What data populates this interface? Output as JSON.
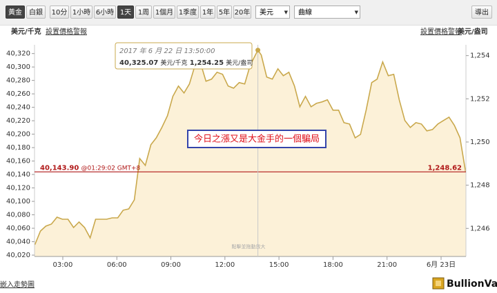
{
  "toolbar": {
    "metals": [
      "黃金",
      "白銀"
    ],
    "active_metal": 0,
    "ranges": [
      "10分",
      "1小時",
      "6小時",
      "1天",
      "1周",
      "1個月",
      "1季度",
      "1年",
      "5年",
      "20年"
    ],
    "active_range": 3,
    "currency": "美元",
    "chart_style": "曲線",
    "export": "導出"
  },
  "header": {
    "left_unit": "美元/千克",
    "left_link": "設置價格警報",
    "right_link": "設置價格警報",
    "right_unit": "美元/盎司"
  },
  "footer": {
    "embed_link": "嵌入走勢圖",
    "logo": "BullionVault"
  },
  "chart_data": {
    "type": "area",
    "color": "#c9a84c",
    "fill": "#fcf1d8",
    "watermark": "BullionVault",
    "hint": "點擊並拖動放大",
    "x": [
      1.45,
      1.76,
      2.06,
      2.37,
      2.68,
      2.98,
      3.29,
      3.6,
      3.9,
      4.21,
      4.52,
      4.82,
      5.13,
      5.43,
      5.74,
      6.05,
      6.35,
      6.66,
      6.97,
      7.27,
      7.58,
      7.89,
      8.19,
      8.5,
      8.81,
      9.11,
      9.42,
      9.73,
      10.03,
      10.34,
      10.65,
      10.95,
      11.26,
      11.56,
      11.87,
      12.18,
      12.48,
      12.79,
      13.1,
      13.4,
      13.83,
      14.02,
      14.32,
      14.63,
      14.94,
      15.24,
      15.55,
      15.86,
      16.16,
      16.47,
      16.78,
      17.08,
      17.39,
      17.69,
      18.0,
      18.31,
      18.61,
      18.92,
      19.23,
      19.53,
      19.84,
      20.15,
      20.45,
      20.76,
      21.07,
      21.37,
      21.68,
      21.99,
      22.29,
      22.6,
      22.91,
      23.21,
      23.52,
      23.82,
      24.13,
      24.44,
      24.74,
      25.05,
      25.36
    ],
    "values": [
      40035.4,
      40055.9,
      40063.1,
      40066.2,
      40076.5,
      40073.4,
      40073.4,
      40061.1,
      40069.3,
      40061.1,
      40045.7,
      40073.4,
      40073.4,
      40073.4,
      40075.5,
      40075.5,
      40086.8,
      40088.8,
      40102.2,
      40163.8,
      40153.5,
      40184.3,
      40194.6,
      40210.0,
      40227.5,
      40256.2,
      40271.6,
      40261.3,
      40274.7,
      40302.4,
      40305.5,
      40278.8,
      40281.9,
      40292.2,
      40289.1,
      40271.6,
      40268.5,
      40276.8,
      40274.7,
      40302.4,
      40325.07,
      40317.8,
      40285.0,
      40281.9,
      40297.3,
      40287.0,
      40292.2,
      40271.6,
      40240.8,
      40256.2,
      40240.8,
      40245.9,
      40248.0,
      40251.1,
      40235.7,
      40235.7,
      40217.2,
      40215.1,
      40194.6,
      40199.7,
      40235.7,
      40276.8,
      40281.9,
      40307.6,
      40287.0,
      40289.1,
      40251.1,
      40220.3,
      40210.0,
      40217.2,
      40215.1,
      40204.9,
      40206.9,
      40215.1,
      40220.3,
      40225.4,
      40213.1,
      40194.6,
      40143.9
    ],
    "xlim": [
      1.43,
      25.38
    ],
    "xticks": [
      {
        "value": 3,
        "label": "03:00"
      },
      {
        "value": 6,
        "label": "06:00"
      },
      {
        "value": 9,
        "label": "09:00"
      },
      {
        "value": 12,
        "label": "12:00"
      },
      {
        "value": 15,
        "label": "15:00"
      },
      {
        "value": 18,
        "label": "18:00"
      },
      {
        "value": 21,
        "label": "21:00"
      },
      {
        "value": 24,
        "label": "6月 23日"
      }
    ],
    "ylim": [
      40018,
      40333
    ],
    "yticks": [
      {
        "value": 40020,
        "label": "40,020"
      },
      {
        "value": 40040,
        "label": "40,040"
      },
      {
        "value": 40060,
        "label": "40,060"
      },
      {
        "value": 40080,
        "label": "40,080"
      },
      {
        "value": 40100,
        "label": "40,100"
      },
      {
        "value": 40120,
        "label": "40,120"
      },
      {
        "value": 40140,
        "label": "40,140"
      },
      {
        "value": 40160,
        "label": "40,160"
      },
      {
        "value": 40180,
        "label": "40,180"
      },
      {
        "value": 40200,
        "label": "40,200"
      },
      {
        "value": 40220,
        "label": "40,220"
      },
      {
        "value": 40240,
        "label": "40,240"
      },
      {
        "value": 40260,
        "label": "40,260"
      },
      {
        "value": 40280,
        "label": "40,280"
      },
      {
        "value": 40300,
        "label": "40,300"
      },
      {
        "value": 40320,
        "label": "40,320"
      }
    ],
    "y2lim": [
      1244.7,
      1254.5
    ],
    "y2ticks": [
      {
        "value": 1246,
        "label": "1,246"
      },
      {
        "value": 1248,
        "label": "1,248"
      },
      {
        "value": 1250,
        "label": "1,250"
      },
      {
        "value": 1252,
        "label": "1,252"
      },
      {
        "value": 1254,
        "label": "1,254"
      }
    ],
    "current": {
      "value": 40143.9,
      "label": "40,143.90",
      "time": "@01:29:02 GMT+8",
      "y2": {
        "value": 1248.62,
        "label": "1,248.62"
      },
      "color": "#b01818"
    },
    "tooltip": {
      "index": 40,
      "date": "2017 年 6 月 22 日 13:50:00",
      "kg": {
        "value": 40325.07,
        "label": "40,325.07"
      },
      "kg_unit": "美元/千克",
      "oz": {
        "value": 1254.25,
        "label": "1,254.25"
      },
      "oz_unit": "美元/盎司"
    },
    "annotation": "今日之漲又是大金手的一個騙局"
  }
}
